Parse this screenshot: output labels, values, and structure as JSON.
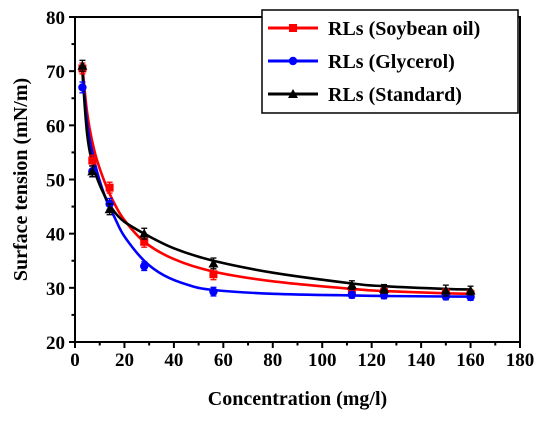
{
  "chart_data": {
    "type": "scatter",
    "xlabel": "Concentration (mg/l)",
    "ylabel": "Surface tension (mN/m)",
    "xlim": [
      0,
      180
    ],
    "ylim": [
      20,
      80
    ],
    "x_ticks": [
      0,
      20,
      40,
      60,
      80,
      100,
      120,
      140,
      160,
      180
    ],
    "y_ticks": [
      20,
      30,
      40,
      50,
      60,
      70,
      80
    ],
    "grid": false,
    "legend_position": "top-right",
    "series": [
      {
        "name": "RLs (Soybean oil)",
        "color": "#ff0000",
        "marker": "square",
        "points": [
          {
            "x": 3,
            "y": 70.5,
            "err": 1.0
          },
          {
            "x": 7,
            "y": 53.5,
            "err": 1.0
          },
          {
            "x": 14,
            "y": 48.5,
            "err": 1.0
          },
          {
            "x": 28,
            "y": 38.5,
            "err": 1.0
          },
          {
            "x": 56,
            "y": 32.5,
            "err": 1.0
          },
          {
            "x": 112,
            "y": 29.5,
            "err": 0.8
          },
          {
            "x": 125,
            "y": 29.2,
            "err": 0.8
          },
          {
            "x": 150,
            "y": 29.0,
            "err": 0.8
          },
          {
            "x": 160,
            "y": 28.8,
            "err": 0.8
          }
        ],
        "fit": [
          [
            3,
            71
          ],
          [
            5,
            62
          ],
          [
            8,
            55
          ],
          [
            12,
            49.5
          ],
          [
            16,
            45.5
          ],
          [
            20,
            42.5
          ],
          [
            28,
            38.5
          ],
          [
            40,
            35.3
          ],
          [
            56,
            33
          ],
          [
            80,
            31.2
          ],
          [
            112,
            29.8
          ],
          [
            125,
            29.4
          ],
          [
            150,
            29
          ],
          [
            160,
            28.9
          ]
        ]
      },
      {
        "name": "RLs (Glycerol)",
        "color": "#0000ff",
        "marker": "circle",
        "points": [
          {
            "x": 3,
            "y": 67.0,
            "err": 1.0
          },
          {
            "x": 7,
            "y": 51.5,
            "err": 1.0
          },
          {
            "x": 14,
            "y": 45.5,
            "err": 1.0
          },
          {
            "x": 28,
            "y": 34.0,
            "err": 0.8
          },
          {
            "x": 56,
            "y": 29.3,
            "err": 0.8
          },
          {
            "x": 112,
            "y": 28.7,
            "err": 0.6
          },
          {
            "x": 125,
            "y": 28.6,
            "err": 0.6
          },
          {
            "x": 150,
            "y": 28.4,
            "err": 0.6
          },
          {
            "x": 160,
            "y": 28.3,
            "err": 0.6
          }
        ],
        "fit": [
          [
            3,
            70
          ],
          [
            5,
            60
          ],
          [
            8,
            53
          ],
          [
            12,
            47
          ],
          [
            16,
            43
          ],
          [
            20,
            39.5
          ],
          [
            28,
            35
          ],
          [
            36,
            32.3
          ],
          [
            46,
            30.5
          ],
          [
            56,
            29.6
          ],
          [
            80,
            28.9
          ],
          [
            112,
            28.6
          ],
          [
            125,
            28.5
          ],
          [
            150,
            28.4
          ],
          [
            160,
            28.4
          ]
        ]
      },
      {
        "name": "RLs (Standard)",
        "color": "#000000",
        "marker": "triangle",
        "points": [
          {
            "x": 3,
            "y": 71.0,
            "err": 1.0
          },
          {
            "x": 7,
            "y": 51.5,
            "err": 1.0
          },
          {
            "x": 14,
            "y": 44.5,
            "err": 1.0
          },
          {
            "x": 28,
            "y": 40.0,
            "err": 1.0
          },
          {
            "x": 56,
            "y": 34.5,
            "err": 1.0
          },
          {
            "x": 112,
            "y": 30.5,
            "err": 0.8
          },
          {
            "x": 125,
            "y": 29.8,
            "err": 0.8
          },
          {
            "x": 150,
            "y": 29.5,
            "err": 1.0
          },
          {
            "x": 160,
            "y": 29.5,
            "err": 0.8
          }
        ],
        "fit": [
          [
            3,
            70
          ],
          [
            5,
            58
          ],
          [
            8,
            51.5
          ],
          [
            12,
            47
          ],
          [
            16,
            44
          ],
          [
            20,
            42.2
          ],
          [
            28,
            40
          ],
          [
            40,
            37.3
          ],
          [
            56,
            35
          ],
          [
            80,
            32.8
          ],
          [
            112,
            30.8
          ],
          [
            125,
            30.3
          ],
          [
            150,
            29.8
          ],
          [
            160,
            29.7
          ]
        ]
      }
    ]
  }
}
